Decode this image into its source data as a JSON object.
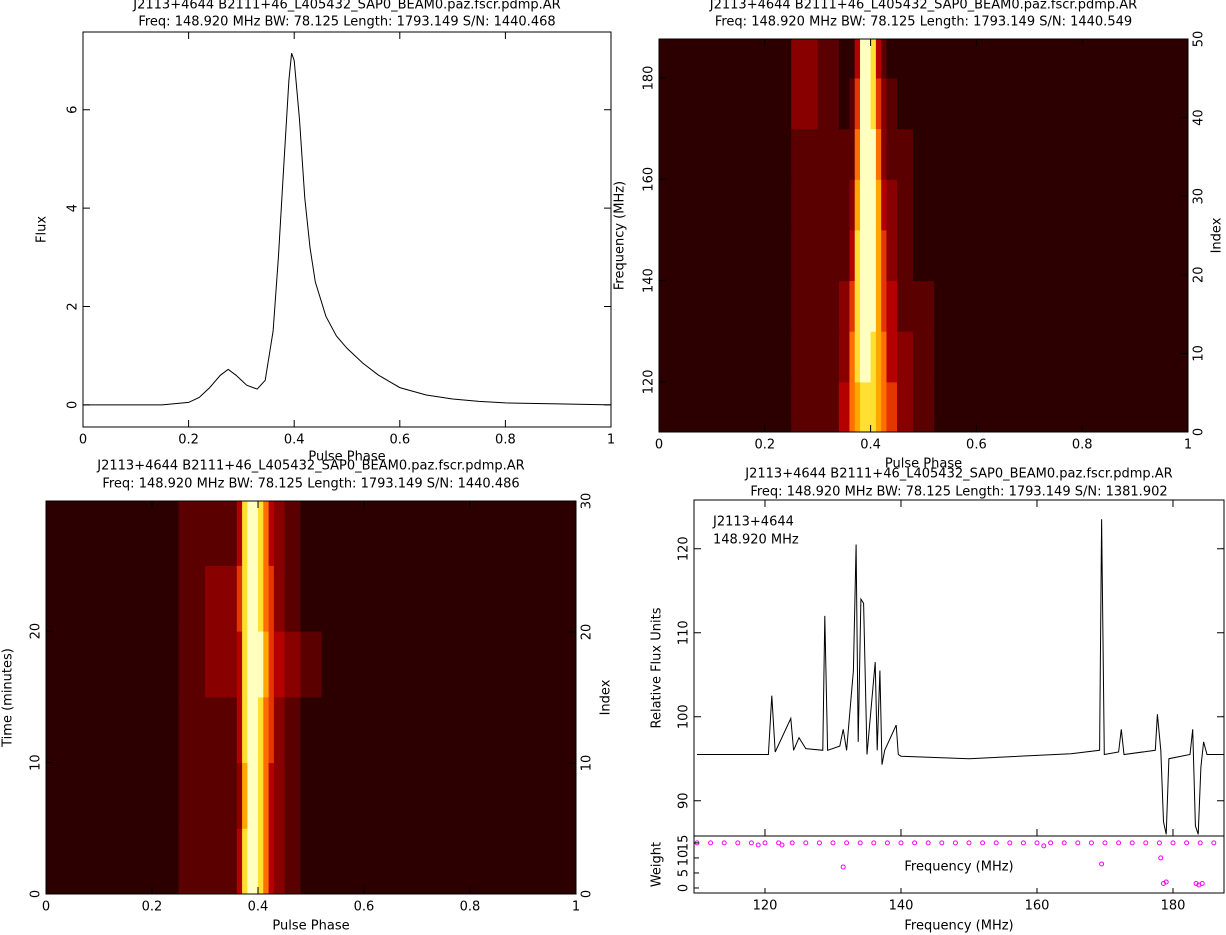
{
  "chart_data": [
    {
      "type": "line",
      "title": "J2113+4644  B2111+46_L405432_SAP0_BEAM0.paz.fscr.pdmp.AR",
      "subtitle": "Freq: 148.920 MHz BW: 78.125 Length: 1793.149 S/N: 1440.468",
      "xlabel": "Pulse Phase",
      "ylabel": "Flux",
      "color": "#000000",
      "x": [
        0,
        0.05,
        0.1,
        0.15,
        0.2,
        0.22,
        0.24,
        0.26,
        0.275,
        0.29,
        0.31,
        0.33,
        0.345,
        0.36,
        0.37,
        0.38,
        0.39,
        0.395,
        0.4,
        0.41,
        0.42,
        0.43,
        0.44,
        0.46,
        0.48,
        0.5,
        0.53,
        0.56,
        0.6,
        0.65,
        0.7,
        0.75,
        0.8,
        0.9,
        1.0
      ],
      "values": [
        0,
        0,
        0,
        0,
        0.05,
        0.15,
        0.35,
        0.6,
        0.72,
        0.6,
        0.4,
        0.32,
        0.5,
        1.5,
        3.0,
        4.8,
        6.6,
        7.15,
        7.0,
        5.8,
        4.2,
        3.2,
        2.5,
        1.8,
        1.4,
        1.15,
        0.85,
        0.6,
        0.35,
        0.2,
        0.12,
        0.07,
        0.04,
        0.02,
        0
      ],
      "xlim": [
        0,
        1
      ],
      "xticks": [
        0,
        0.2,
        0.4,
        0.6,
        0.8,
        1
      ],
      "ylim": [
        -0.45,
        7.58
      ],
      "yticks": [
        0,
        2,
        4,
        6
      ]
    },
    {
      "type": "heatmap",
      "title": "J2113+4644  B2111+46_L405432_SAP0_BEAM0.paz.fscr.pdmp.AR",
      "subtitle": "Freq: 148.920 MHz BW: 78.125 Length: 1793.149 S/N: 1440.549",
      "xlabel": "Pulse Phase",
      "ylabel": "Frequency (MHz)",
      "y2label": "Index",
      "colormap": "heat",
      "zlim": [
        0,
        9
      ],
      "x_edges": [
        0,
        0.1,
        0.2,
        0.25,
        0.3,
        0.34,
        0.36,
        0.37,
        0.38,
        0.39,
        0.4,
        0.41,
        0.42,
        0.43,
        0.45,
        0.48,
        0.52,
        0.6,
        0.8,
        1.0
      ],
      "y_edges": [
        110.1,
        120,
        130,
        140,
        150,
        160,
        170,
        180,
        187.7
      ],
      "values": [
        [
          1,
          1,
          1,
          2,
          2,
          4,
          6,
          7,
          8,
          8,
          8,
          7,
          6,
          5,
          3,
          2,
          1,
          1,
          1
        ],
        [
          1,
          1,
          1,
          2,
          2,
          3,
          6,
          8,
          9,
          9,
          8,
          7,
          6,
          4,
          3,
          2,
          1,
          1,
          1
        ],
        [
          1,
          1,
          1,
          2,
          2,
          3,
          5,
          8,
          9,
          9,
          9,
          7,
          5,
          4,
          2,
          2,
          1,
          1,
          1
        ],
        [
          1,
          1,
          1,
          2,
          2,
          2,
          4,
          8,
          9,
          9,
          9,
          7,
          5,
          3,
          2,
          1,
          1,
          1,
          1
        ],
        [
          1,
          1,
          1,
          2,
          2,
          2,
          3,
          7,
          9,
          9,
          9,
          7,
          4,
          3,
          2,
          1,
          1,
          1,
          1
        ],
        [
          1,
          1,
          1,
          2,
          2,
          2,
          2,
          6,
          9,
          9,
          9,
          6,
          3,
          2,
          2,
          1,
          1,
          1,
          1
        ],
        [
          1,
          1,
          1,
          3,
          2,
          1,
          2,
          5,
          9,
          9,
          8,
          5,
          3,
          2,
          1,
          1,
          1,
          1,
          1
        ],
        [
          1,
          1,
          1,
          3,
          2,
          1,
          1,
          4,
          9,
          9,
          8,
          4,
          2,
          1,
          1,
          1,
          1,
          1,
          1
        ]
      ],
      "xlim": [
        0,
        1
      ],
      "xticks": [
        0,
        0.2,
        0.4,
        0.6,
        0.8,
        1
      ],
      "ylim": [
        110.1,
        187.7
      ],
      "yticks": [
        120,
        140,
        160,
        180
      ],
      "y2lim": [
        0,
        50
      ],
      "y2ticks": [
        0,
        10,
        20,
        30,
        40,
        50
      ]
    },
    {
      "type": "heatmap",
      "title": "J2113+4644  B2111+46_L405432_SAP0_BEAM0.paz.fscr.pdmp.AR",
      "subtitle": "Freq: 148.920 MHz BW: 78.125 Length: 1793.149 S/N: 1440.486",
      "xlabel": "Pulse Phase",
      "ylabel": "Time (minutes)",
      "y2label": "Index",
      "colormap": "heat",
      "zlim": [
        0,
        9
      ],
      "x_edges": [
        0,
        0.1,
        0.2,
        0.25,
        0.3,
        0.34,
        0.36,
        0.37,
        0.38,
        0.39,
        0.4,
        0.41,
        0.42,
        0.43,
        0.45,
        0.48,
        0.52,
        0.6,
        0.8,
        1.0
      ],
      "y_edges": [
        0,
        5,
        10,
        15,
        20,
        25,
        29.9
      ],
      "values": [
        [
          1,
          1,
          1,
          2,
          2,
          2,
          4,
          8,
          9,
          9,
          8,
          6,
          4,
          3,
          2,
          1,
          1,
          1,
          1
        ],
        [
          1,
          1,
          1,
          2,
          2,
          2,
          3,
          7,
          9,
          9,
          8,
          6,
          4,
          3,
          2,
          1,
          1,
          1,
          1
        ],
        [
          1,
          1,
          1,
          2,
          2,
          2,
          4,
          8,
          9,
          9,
          8,
          6,
          5,
          3,
          2,
          1,
          1,
          1,
          1
        ],
        [
          1,
          1,
          1,
          2,
          3,
          3,
          4,
          8,
          9,
          9,
          9,
          7,
          5,
          4,
          3,
          2,
          1,
          1,
          1
        ],
        [
          1,
          1,
          1,
          2,
          3,
          3,
          5,
          8,
          9,
          9,
          8,
          6,
          5,
          3,
          2,
          1,
          1,
          1,
          1
        ],
        [
          1,
          1,
          1,
          2,
          2,
          2,
          4,
          8,
          9,
          9,
          8,
          6,
          4,
          3,
          2,
          1,
          1,
          1,
          1
        ]
      ],
      "xlim": [
        0,
        1
      ],
      "xticks": [
        0,
        0.2,
        0.4,
        0.6,
        0.8,
        1
      ],
      "ylim": [
        0,
        29.9
      ],
      "yticks": [
        0,
        10,
        20
      ],
      "y2lim": [
        0,
        30
      ],
      "y2ticks": [
        0,
        10,
        20,
        30
      ]
    },
    {
      "type": "line",
      "title": "J2113+4644  B2111+46_L405432_SAP0_BEAM0.paz.fscr.pdmp.AR",
      "subtitle": "Freq: 148.920 MHz BW: 78.125 Length: 1793.149 S/N: 1381.902",
      "xlabel": "Frequency (MHz)",
      "ylabel": "Relative Flux Units",
      "color": "#000000",
      "annotations": [
        "J2113+4644",
        "148.920 MHz"
      ],
      "x": [
        110,
        118,
        120.5,
        121,
        121.5,
        123.8,
        124.2,
        125,
        126,
        128.5,
        128.8,
        129.2,
        131,
        131.5,
        132,
        133,
        133.4,
        133.7,
        134.1,
        134.5,
        135,
        136.2,
        136.5,
        136.9,
        137.2,
        137.6,
        139.3,
        139.6,
        140,
        150,
        165,
        169.2,
        169.5,
        169.9,
        172,
        172.4,
        172.8,
        177.4,
        177.7,
        178.2,
        178.6,
        179,
        179.4,
        182.5,
        182.9,
        183.3,
        183.7,
        184.1,
        184.5,
        185,
        187.5
      ],
      "values": [
        95.5,
        95.5,
        95.5,
        102.5,
        95.8,
        99.8,
        96,
        97.5,
        96.2,
        96,
        112,
        96,
        96.5,
        98.5,
        96,
        105.5,
        120.5,
        97,
        114,
        113.5,
        95.5,
        106.5,
        96,
        105.5,
        94.3,
        96,
        99,
        95.5,
        95.3,
        95,
        95.6,
        96,
        123.5,
        95.5,
        95.8,
        98.5,
        95.5,
        96,
        100.3,
        96,
        87.5,
        86,
        95,
        95.5,
        98.5,
        87,
        86,
        94,
        97,
        95.5,
        95.5
      ],
      "xlim": [
        109.56,
        187.5
      ],
      "xticks": [
        120,
        140,
        160,
        180
      ],
      "ylim": [
        85.8,
        125.8
      ],
      "yticks": [
        90,
        100,
        110,
        120
      ],
      "weights": {
        "ylabel": "Weight",
        "xlabel": "Frequency (MHz)",
        "color": "#ff00ff",
        "x": [
          110,
          112,
          114,
          116,
          118,
          120,
          122,
          124,
          126,
          128,
          130,
          132,
          134,
          136,
          138,
          140,
          142,
          144,
          146,
          148,
          150,
          152,
          154,
          156,
          158,
          160,
          162,
          164,
          166,
          168,
          170,
          172,
          174,
          176,
          178,
          180,
          182,
          184,
          186,
          119,
          122.5,
          131.5,
          161,
          169.5,
          178.2,
          178.6,
          179,
          183.4,
          183.8,
          184.3
        ],
        "values": [
          15,
          15,
          15,
          15,
          15,
          15,
          15,
          15,
          15,
          15,
          15,
          15,
          15,
          15,
          15,
          15,
          15,
          15,
          15,
          15,
          15,
          15,
          15,
          15,
          15,
          15,
          15,
          15,
          15,
          15,
          15,
          15,
          15,
          15,
          15,
          15,
          15,
          15,
          15,
          14.3,
          14.3,
          7,
          14,
          8,
          10,
          1.5,
          2,
          1.5,
          1,
          1.5
        ],
        "ylim": [
          -1.67,
          17.3
        ],
        "yticks": [
          0,
          5,
          10,
          15
        ]
      }
    }
  ]
}
